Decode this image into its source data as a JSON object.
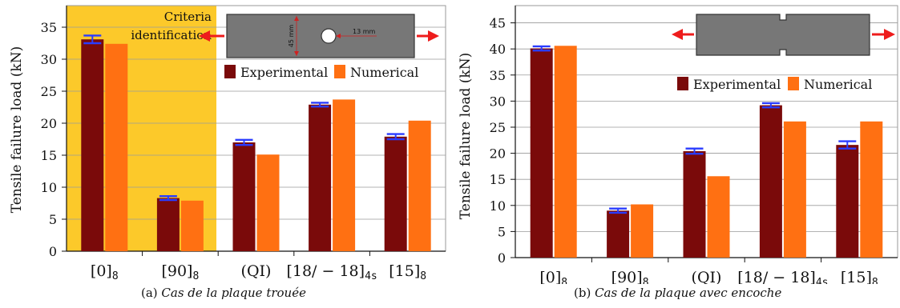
{
  "colors": {
    "experimental": "#7a0a0a",
    "numerical": "#ff7012",
    "error_bar": "#2a3cff",
    "highlight": "#fcc92a",
    "specimen": "#777777",
    "arrow": "#ee1c1c"
  },
  "chart_data": [
    {
      "type": "bar",
      "ylabel": "Tensile failure load (kN)",
      "ylim": [
        0,
        38
      ],
      "yticks": [
        "0",
        "5",
        "10",
        "15",
        "20",
        "25",
        "30",
        "35"
      ],
      "categories": [
        "[0]",
        "[90]",
        "(QI)",
        "[18/ − 18]",
        "[15]"
      ],
      "category_subscripts": [
        "8",
        "8",
        "",
        "4s",
        "8"
      ],
      "series": [
        {
          "name": "Experimental",
          "values": [
            33.1,
            8.3,
            17.0,
            22.9,
            17.9
          ],
          "error": [
            0.6,
            0.3,
            0.4,
            0.3,
            0.4
          ]
        },
        {
          "name": "Numerical",
          "values": [
            32.4,
            7.9,
            15.1,
            23.7,
            20.4
          ]
        }
      ],
      "legend_position": "top-right",
      "grid": "horizontal",
      "highlight": {
        "label_line1": "Criteria",
        "label_line2": "identification",
        "categories_covered": 2
      },
      "inset": {
        "type": "holed-plate",
        "height_label": "45 mm",
        "hole_label": "13 mm"
      },
      "caption_prefix": "(a) ",
      "caption_italic": "Cas de la plaque trouée"
    },
    {
      "type": "bar",
      "ylabel": "Tensile failure load (kN)",
      "ylim": [
        0,
        48
      ],
      "yticks": [
        "0",
        "5",
        "10",
        "15",
        "20",
        "25",
        "30",
        "35",
        "40",
        "45"
      ],
      "categories": [
        "[0]",
        "[90]",
        "(QI)",
        "[18/ − 18]",
        "[15]"
      ],
      "category_subscripts": [
        "8",
        "8",
        "",
        "4s",
        "8"
      ],
      "series": [
        {
          "name": "Experimental",
          "values": [
            40.1,
            9.0,
            20.4,
            29.2,
            21.6
          ],
          "error": [
            0.4,
            0.4,
            0.5,
            0.4,
            0.7
          ]
        },
        {
          "name": "Numerical",
          "values": [
            40.6,
            10.2,
            15.6,
            26.1,
            26.1
          ]
        }
      ],
      "legend_position": "top-right",
      "grid": "horizontal",
      "inset": {
        "type": "notched-plate"
      },
      "caption_prefix": "(b) ",
      "caption_italic": "Cas de la plaque avec encoche"
    }
  ]
}
